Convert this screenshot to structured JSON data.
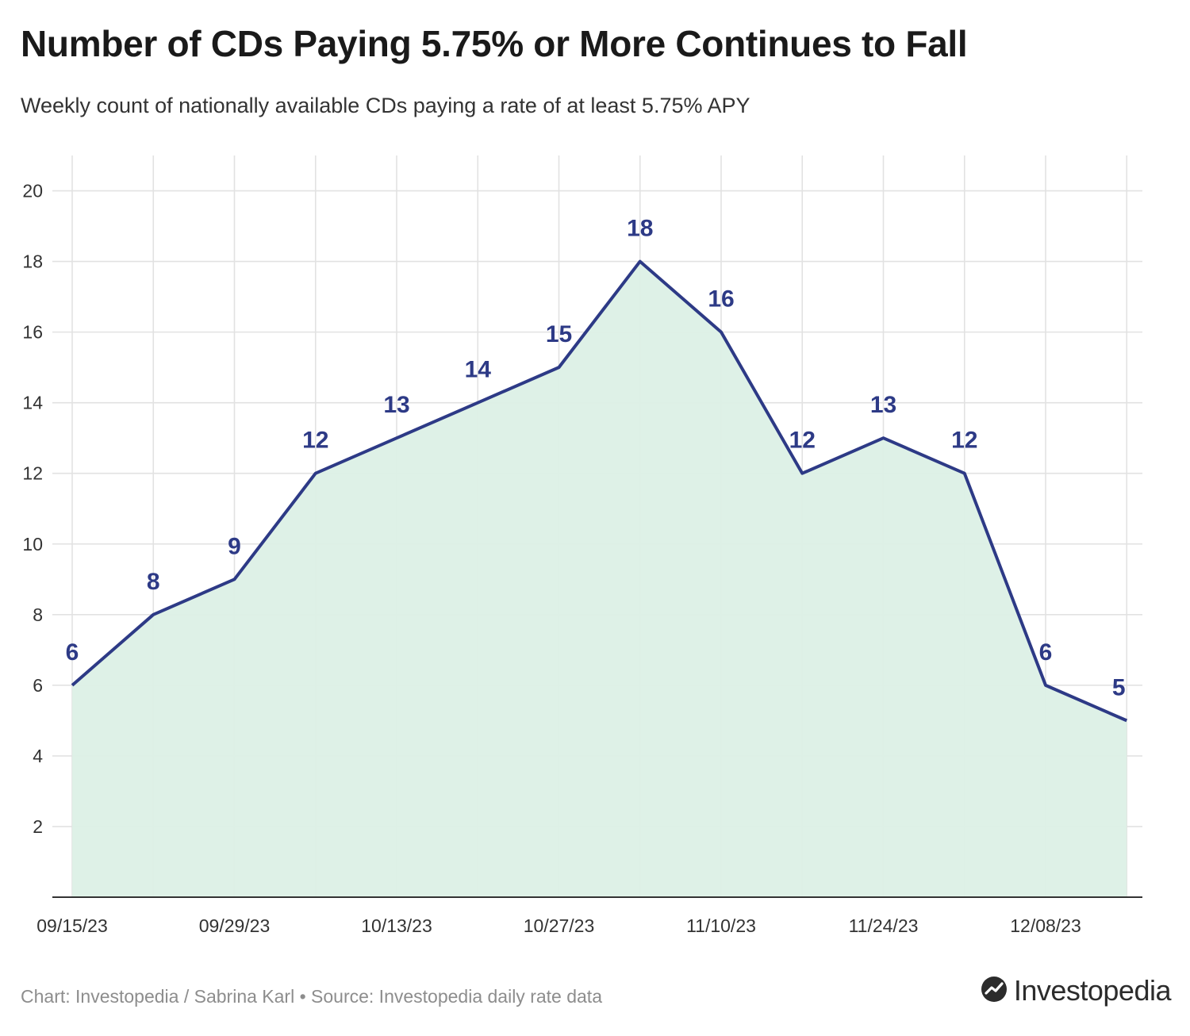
{
  "header": {
    "title": "Number of CDs Paying 5.75% or More Continues to Fall",
    "subtitle": "Weekly count of nationally available CDs paying a rate of at least 5.75% APY"
  },
  "footer": {
    "credit": "Chart: Investopedia / Sabrina Karl • Source: Investopedia daily rate data",
    "brand": "Investopedia"
  },
  "colors": {
    "line": "#2d3a86",
    "area": "#dcf0e6",
    "label": "#2d3a86"
  },
  "chart_data": {
    "type": "area",
    "title": "Number of CDs Paying 5.75% or More Continues to Fall",
    "subtitle": "Weekly count of nationally available CDs paying a rate of at least 5.75% APY",
    "xlabel": "",
    "ylabel": "",
    "x": [
      "09/15/23",
      "09/22/23",
      "09/29/23",
      "10/06/23",
      "10/13/23",
      "10/20/23",
      "10/27/23",
      "11/03/23",
      "11/10/23",
      "11/17/23",
      "11/24/23",
      "12/01/23",
      "12/08/23",
      "12/15/23"
    ],
    "x_tick_labels": [
      "09/15/23",
      "09/29/23",
      "10/13/23",
      "10/27/23",
      "11/10/23",
      "11/24/23",
      "12/08/23"
    ],
    "values": [
      6,
      8,
      9,
      12,
      13,
      14,
      15,
      18,
      16,
      12,
      13,
      12,
      6,
      5
    ],
    "ylim": [
      0,
      21
    ],
    "y_ticks": [
      2,
      4,
      6,
      8,
      10,
      12,
      14,
      16,
      18,
      20
    ],
    "grid": true,
    "data_labels": true
  }
}
